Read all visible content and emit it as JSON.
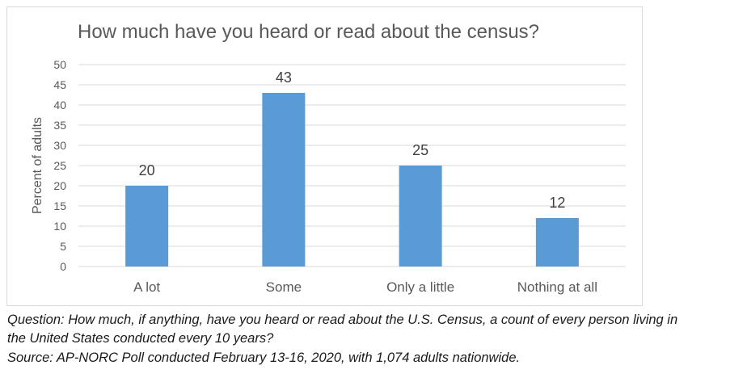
{
  "chart_data": {
    "type": "bar",
    "title": "How much have you heard or read about the census?",
    "xlabel": "",
    "ylabel": "Percent of adults",
    "categories": [
      "A lot",
      "Some",
      "Only a little",
      "Nothing at all"
    ],
    "values": [
      20,
      43,
      25,
      12
    ],
    "data_labels": [
      "20",
      "43",
      "25",
      "12"
    ],
    "ylim": [
      0,
      50
    ],
    "yticks": [
      0,
      5,
      10,
      15,
      20,
      25,
      30,
      35,
      40,
      45,
      50
    ],
    "grid": true,
    "legend": "none",
    "bar_color": "#5b9bd5",
    "grid_color": "#d9d9d9"
  },
  "footnote": {
    "question_line1": "Question: How much, if anything, have you heard or read about the U.S. Census, a count of every person living in",
    "question_line2": "the United States conducted every 10 years?",
    "source": "Source: AP-NORC Poll conducted February 13-16, 2020, with 1,074 adults nationwide."
  }
}
